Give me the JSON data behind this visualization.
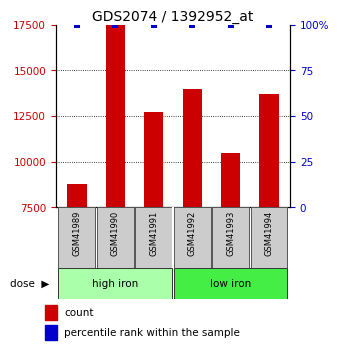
{
  "title": "GDS2074 / 1392952_at",
  "samples": [
    "GSM41989",
    "GSM41990",
    "GSM41991",
    "GSM41992",
    "GSM41993",
    "GSM41994"
  ],
  "bar_values": [
    8800,
    17500,
    12700,
    14000,
    10500,
    13700
  ],
  "percentile_values": [
    100,
    100,
    100,
    100,
    100,
    100
  ],
  "bar_color": "#cc0000",
  "percentile_color": "#0000cc",
  "ylim_left": [
    7500,
    17500
  ],
  "ylim_right": [
    0,
    100
  ],
  "yticks_left": [
    7500,
    10000,
    12500,
    15000,
    17500
  ],
  "yticks_right": [
    0,
    25,
    50,
    75,
    100
  ],
  "groups": [
    {
      "label": "high iron",
      "indices": [
        0,
        1,
        2
      ],
      "color": "#aaffaa"
    },
    {
      "label": "low iron",
      "indices": [
        3,
        4,
        5
      ],
      "color": "#44ee44"
    }
  ],
  "dose_label": "dose",
  "legend_count_label": "count",
  "legend_pct_label": "percentile rank within the sample",
  "title_fontsize": 10,
  "tick_fontsize": 7.5
}
